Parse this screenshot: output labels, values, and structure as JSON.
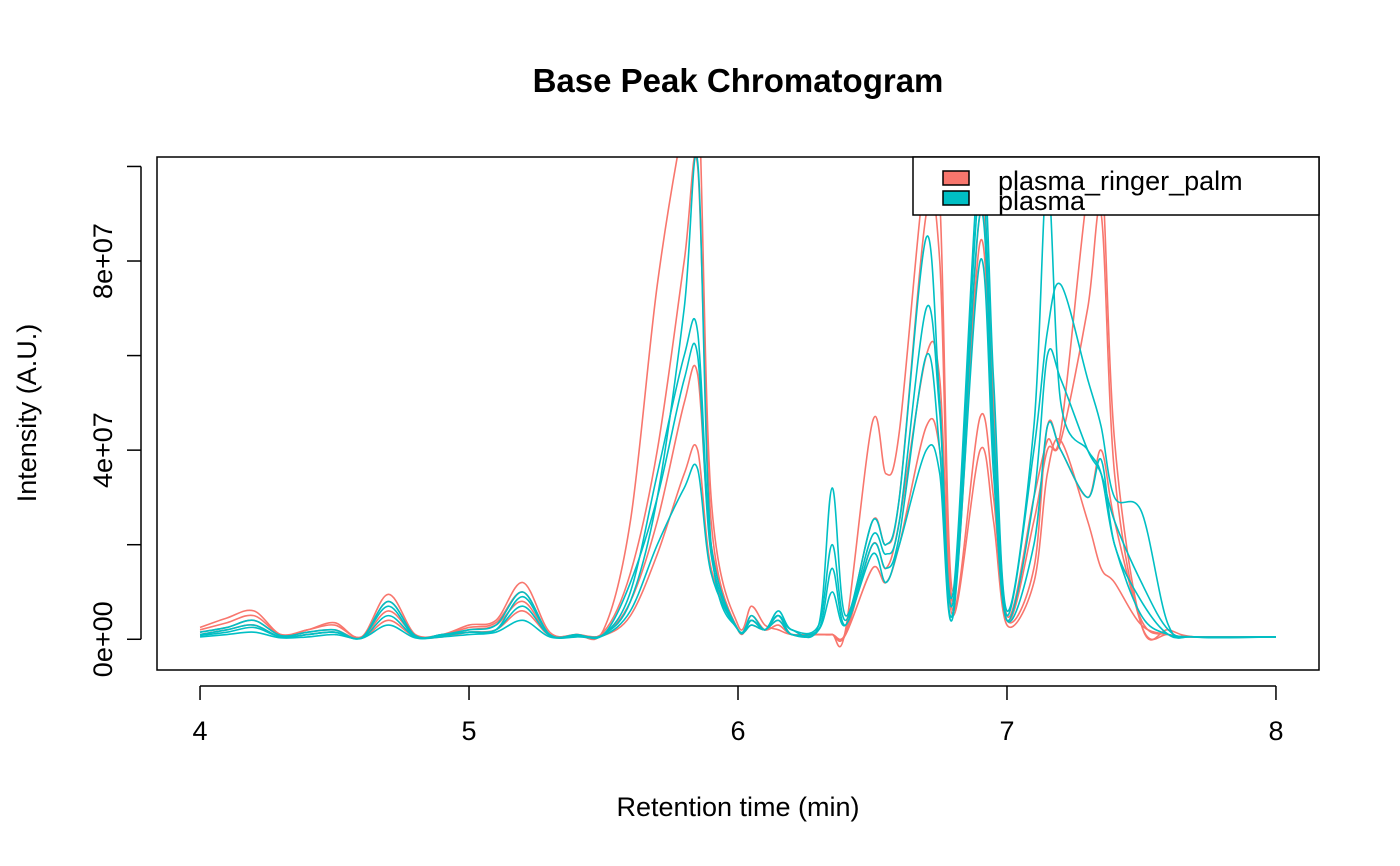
{
  "chart_data": {
    "type": "line",
    "title": "Base Peak Chromatogram",
    "xlabel": "Retention time (min)",
    "ylabel": "Intensity  (A.U.)",
    "xlim": [
      3.84,
      8.16
    ],
    "ylim": [
      -6500000,
      102000000
    ],
    "x_ticks": [
      4,
      5,
      6,
      7,
      8
    ],
    "x_tick_labels": [
      "4",
      "5",
      "6",
      "7",
      "8"
    ],
    "y_ticks": [
      0,
      20000000,
      40000000,
      60000000,
      80000000,
      100000000
    ],
    "y_tick_labels": [
      "0e+00",
      "",
      "4e+07",
      "",
      "8e+07",
      ""
    ],
    "legend": {
      "position": "top-right",
      "entries": [
        {
          "label": "plasma_ringer_palm",
          "color": "#F8766D"
        },
        {
          "label": "plasma",
          "color": "#00BFC4"
        }
      ]
    },
    "x": [
      4.0,
      4.1,
      4.2,
      4.3,
      4.4,
      4.5,
      4.6,
      4.7,
      4.8,
      4.9,
      5.0,
      5.1,
      5.2,
      5.3,
      5.4,
      5.5,
      5.6,
      5.7,
      5.8,
      5.85,
      5.9,
      6.0,
      6.05,
      6.1,
      6.15,
      6.2,
      6.3,
      6.35,
      6.4,
      6.5,
      6.55,
      6.6,
      6.7,
      6.75,
      6.8,
      6.9,
      6.95,
      7.0,
      7.1,
      7.15,
      7.2,
      7.3,
      7.35,
      7.4,
      7.5,
      7.6,
      7.7,
      8.0
    ],
    "series": [
      {
        "group": "plasma_ringer_palm",
        "color": "#F8766D",
        "values": [
          2.5,
          4.5,
          6,
          1,
          2,
          3.5,
          0.5,
          9.5,
          1,
          1,
          3,
          4,
          12,
          1.5,
          1,
          2,
          25,
          75,
          110,
          120,
          30,
          3,
          7,
          3,
          2,
          1,
          1,
          1,
          2,
          46,
          35,
          44,
          101,
          93,
          10,
          90,
          50,
          5,
          30,
          42,
          44,
          95,
          102,
          42,
          3,
          2,
          0.5,
          0.5
        ]
      },
      {
        "group": "plasma_ringer_palm",
        "color": "#F8766D",
        "values": [
          2,
          3.5,
          5,
          1,
          2,
          3,
          0.5,
          8,
          1,
          1,
          2.5,
          3.5,
          10,
          1,
          1,
          1.5,
          14,
          40,
          80,
          100,
          25,
          2,
          5,
          2,
          3,
          1,
          1,
          1,
          1.5,
          25,
          20,
          30,
          90,
          80,
          8,
          84,
          40,
          4,
          25,
          40,
          42,
          70,
          90,
          35,
          3,
          1,
          0.5,
          0.5
        ]
      },
      {
        "group": "plasma_ringer_palm",
        "color": "#F8766D",
        "values": [
          1.5,
          2.5,
          4,
          0.8,
          1.5,
          2,
          0.3,
          6,
          0.8,
          0.8,
          2,
          3,
          8,
          1,
          1,
          1,
          8,
          25,
          50,
          56,
          20,
          2,
          4,
          2,
          5,
          1,
          1,
          1,
          1,
          20,
          15,
          25,
          60,
          55,
          6,
          47,
          30,
          4,
          15,
          45,
          40,
          30,
          40,
          25,
          4,
          1,
          0.5,
          0.5
        ]
      },
      {
        "group": "plasma_ringer_palm",
        "color": "#F8766D",
        "values": [
          1,
          2,
          3,
          0.5,
          1,
          1.5,
          0.2,
          4,
          0.5,
          0.5,
          1.5,
          2,
          6,
          0.8,
          0.8,
          0.8,
          5,
          18,
          35,
          40,
          15,
          2,
          3,
          2,
          4,
          1,
          1,
          1,
          1,
          15,
          12,
          20,
          45,
          40,
          5,
          40,
          25,
          3,
          12,
          35,
          42,
          25,
          15,
          12,
          3,
          1,
          0.5,
          0.5
        ]
      },
      {
        "group": "plasma",
        "color": "#00BFC4",
        "values": [
          0.5,
          1,
          1.5,
          0.3,
          0.5,
          1,
          0.2,
          3,
          0.3,
          0.5,
          1,
          1.5,
          4,
          0.5,
          0.5,
          1,
          8,
          30,
          70,
          101,
          20,
          2,
          4,
          2,
          5,
          2,
          3,
          32,
          5,
          25,
          20,
          30,
          85,
          50,
          10,
          103,
          55,
          6,
          45,
          98,
          50,
          40,
          35,
          20,
          5,
          1,
          0.5,
          0.5
        ]
      },
      {
        "group": "plasma",
        "color": "#00BFC4",
        "values": [
          1,
          2,
          3,
          0.5,
          1,
          1.5,
          0.3,
          7,
          0.5,
          1,
          1.5,
          2,
          9,
          1,
          0.8,
          1,
          10,
          35,
          60,
          65,
          20,
          2,
          5,
          2,
          6,
          2,
          3,
          20,
          4,
          22,
          18,
          25,
          70,
          48,
          8,
          97,
          45,
          5,
          40,
          65,
          75,
          55,
          45,
          30,
          27,
          3,
          0.5,
          0.5
        ]
      },
      {
        "group": "plasma",
        "color": "#00BFC4",
        "values": [
          1.5,
          2.5,
          4,
          0.8,
          1.5,
          2,
          0.3,
          8,
          0.8,
          1,
          2,
          3,
          10,
          1,
          1,
          1,
          12,
          30,
          55,
          60,
          18,
          2,
          4,
          2,
          5,
          1,
          2,
          15,
          3,
          20,
          15,
          22,
          60,
          40,
          6,
          90,
          40,
          4,
          30,
          60,
          55,
          40,
          35,
          25,
          12,
          2,
          0.5,
          0.5
        ]
      },
      {
        "group": "plasma",
        "color": "#00BFC4",
        "values": [
          0.8,
          1.5,
          2.5,
          0.5,
          1,
          1.5,
          0.2,
          5,
          0.5,
          0.8,
          1.5,
          2,
          7,
          0.8,
          0.8,
          0.8,
          6,
          20,
          32,
          36,
          14,
          2,
          3,
          2,
          4,
          1,
          2,
          10,
          3,
          18,
          12,
          20,
          40,
          35,
          5,
          80,
          35,
          4,
          20,
          45,
          40,
          30,
          38,
          20,
          8,
          1,
          0.5,
          0.5
        ]
      }
    ]
  }
}
